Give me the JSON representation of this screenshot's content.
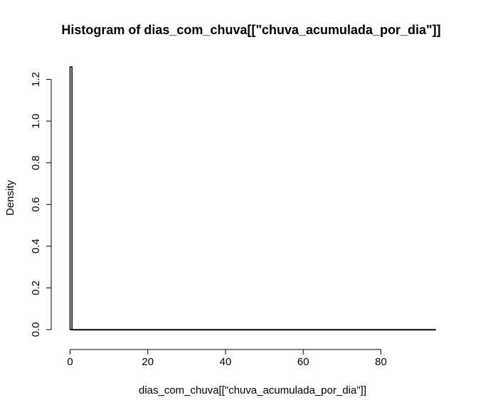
{
  "chart_data": {
    "type": "bar",
    "title": "Histogram of dias_com_chuva[[\"chuva_acumulada_por_dia\"]]",
    "xlabel": "dias_com_chuva[[\"chuva_acumulada_por_dia\"]]",
    "ylabel": "Density",
    "xlim": [
      0,
      94
    ],
    "ylim": [
      0,
      1.26
    ],
    "x_ticks": [
      0,
      20,
      40,
      60,
      80
    ],
    "y_ticks": [
      0.0,
      0.2,
      0.4,
      0.6,
      0.8,
      1.0,
      1.2
    ],
    "x_tick_labels": [
      "0",
      "20",
      "40",
      "60",
      "80"
    ],
    "y_tick_labels": [
      "0.0",
      "0.2",
      "0.4",
      "0.6",
      "0.8",
      "1.0",
      "1.2"
    ],
    "bin_width": 0.5,
    "bins": [
      {
        "start": 0,
        "end": 0.5,
        "density": 1.26
      },
      {
        "start": 0.5,
        "end": 94,
        "density": 0.0
      }
    ],
    "grid": false,
    "legend": "none",
    "colors": {
      "bar_fill": "#ffffff",
      "bar_stroke": "#000000",
      "axis": "#000000"
    }
  }
}
